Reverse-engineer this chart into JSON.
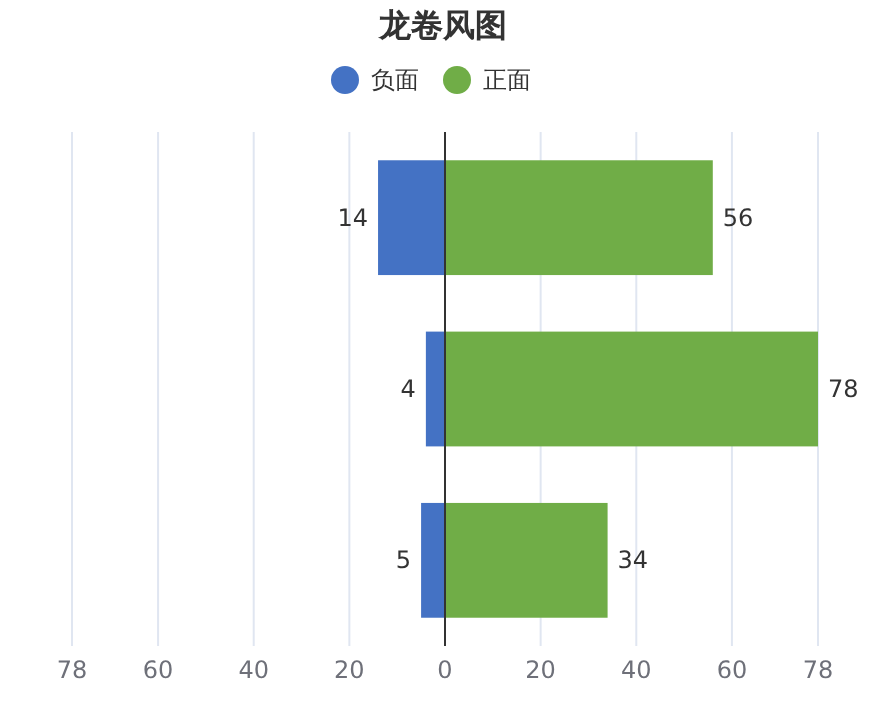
{
  "chart_data": [
    {
      "type": "bar",
      "orientation": "horizontal",
      "title": "龙卷风图",
      "categories": [
        null,
        null,
        null
      ],
      "series": [
        {
          "name": "负面",
          "color": "#4472c4",
          "values": [
            14,
            4,
            5
          ]
        }
      ],
      "xlim": [
        78,
        0
      ],
      "xticks": [
        78,
        60,
        40,
        20,
        0
      ],
      "grid": "x",
      "legend": "top",
      "data_labels": true
    },
    {
      "type": "bar",
      "orientation": "horizontal",
      "categories": [
        null,
        null,
        null
      ],
      "series": [
        {
          "name": "正面",
          "color": "#70ad47",
          "values": [
            56,
            78,
            34
          ]
        }
      ],
      "xlim": [
        0,
        78
      ],
      "xticks": [
        {
          "value": 0,
          "label": null
        },
        20,
        40,
        60,
        78
      ],
      "grid": "x",
      "legend": "top",
      "data_labels": true
    }
  ]
}
